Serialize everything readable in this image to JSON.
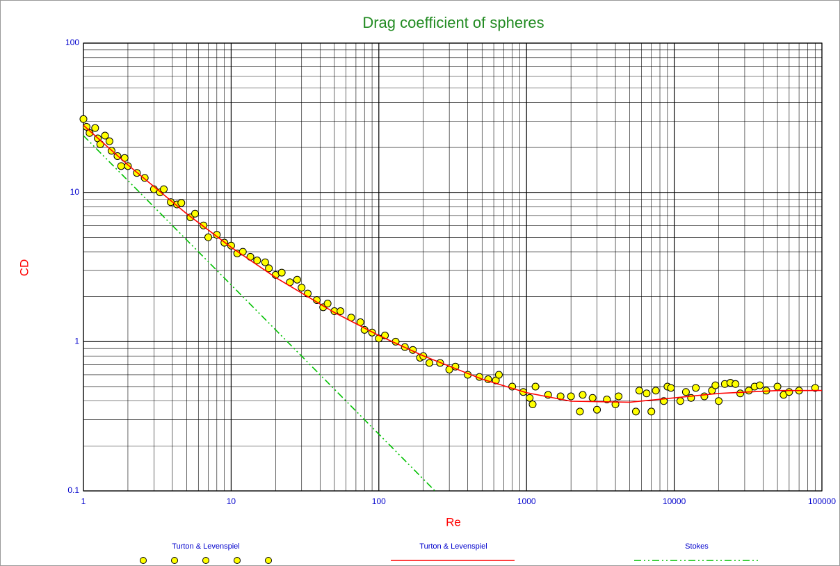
{
  "chart_data": {
    "type": "scatter",
    "title": "Drag coefficient of spheres",
    "x_label": "Re",
    "y_label": "CD",
    "xscale": "log",
    "yscale": "log",
    "grid": true,
    "legend": "bottom",
    "xlim": [
      1,
      100000
    ],
    "ylim": [
      0.1,
      100
    ],
    "xticks": [
      1,
      10,
      100,
      1000,
      10000,
      100000
    ],
    "yticks": [
      0.1,
      1,
      10,
      100
    ],
    "series": [
      {
        "name": "Turton & Levenspiel",
        "kind": "scatter",
        "color": "#ffff00",
        "x": [
          1,
          1.05,
          1.1,
          1.2,
          1.25,
          1.3,
          1.4,
          1.5,
          1.55,
          1.7,
          1.8,
          1.9,
          2,
          2.3,
          2.6,
          3,
          3.3,
          3.5,
          3.9,
          4.3,
          4.6,
          5.3,
          5.7,
          6.5,
          7,
          8,
          9,
          10,
          11,
          12,
          13.5,
          15,
          17,
          18,
          20,
          22,
          25,
          28,
          30,
          33,
          38,
          42,
          45,
          50,
          55,
          65,
          75,
          80,
          90,
          100,
          110,
          130,
          150,
          170,
          190,
          200,
          220,
          260,
          300,
          330,
          400,
          480,
          550,
          620,
          650,
          800,
          950,
          1050,
          1100,
          1150,
          1400,
          1700,
          2000,
          2300,
          2400,
          2800,
          3000,
          3500,
          4000,
          4200,
          5500,
          5800,
          6500,
          7000,
          7500,
          8500,
          9000,
          9500,
          11000,
          12000,
          13000,
          14000,
          16000,
          18000,
          19000,
          20000,
          22000,
          24000,
          26000,
          28000,
          32000,
          35000,
          38000,
          42000,
          50000,
          55000,
          60000,
          70000,
          90000
        ],
        "values": [
          31,
          27.5,
          25,
          27,
          23,
          21,
          24,
          22,
          19,
          17.5,
          15,
          17,
          15,
          13.5,
          12.5,
          10.5,
          10,
          10.5,
          8.6,
          8.3,
          8.5,
          6.8,
          7.2,
          6,
          5,
          5.2,
          4.6,
          4.4,
          3.9,
          4,
          3.7,
          3.5,
          3.4,
          3.1,
          2.8,
          2.9,
          2.5,
          2.6,
          2.3,
          2.1,
          1.9,
          1.7,
          1.8,
          1.6,
          1.6,
          1.45,
          1.35,
          1.2,
          1.15,
          1.05,
          1.1,
          1.0,
          0.92,
          0.88,
          0.78,
          0.8,
          0.72,
          0.72,
          0.65,
          0.68,
          0.6,
          0.58,
          0.56,
          0.55,
          0.6,
          0.5,
          0.46,
          0.42,
          0.38,
          0.5,
          0.44,
          0.43,
          0.43,
          0.34,
          0.44,
          0.42,
          0.35,
          0.41,
          0.38,
          0.43,
          0.34,
          0.47,
          0.45,
          0.34,
          0.47,
          0.4,
          0.5,
          0.49,
          0.4,
          0.46,
          0.42,
          0.49,
          0.43,
          0.47,
          0.51,
          0.4,
          0.52,
          0.53,
          0.52,
          0.45,
          0.47,
          0.5,
          0.51,
          0.47,
          0.5,
          0.44,
          0.46,
          0.47,
          0.49
        ]
      },
      {
        "name": "Turton & Levenspiel",
        "kind": "line",
        "color": "#ff0000",
        "x": [
          1,
          2,
          5,
          10,
          20,
          50,
          100,
          200,
          500,
          1000,
          2000,
          5000,
          10000,
          20000,
          50000,
          100000
        ],
        "values": [
          28.15,
          15.27,
          7.19,
          4.29,
          2.69,
          1.567,
          1.1,
          0.803,
          0.561,
          0.455,
          0.399,
          0.393,
          0.42,
          0.45,
          0.47,
          0.471
        ]
      },
      {
        "name": "Stokes",
        "kind": "line",
        "color": "#00c000",
        "dash": "dashdot",
        "x": [
          1,
          240
        ],
        "values": [
          24,
          0.1
        ]
      }
    ]
  }
}
